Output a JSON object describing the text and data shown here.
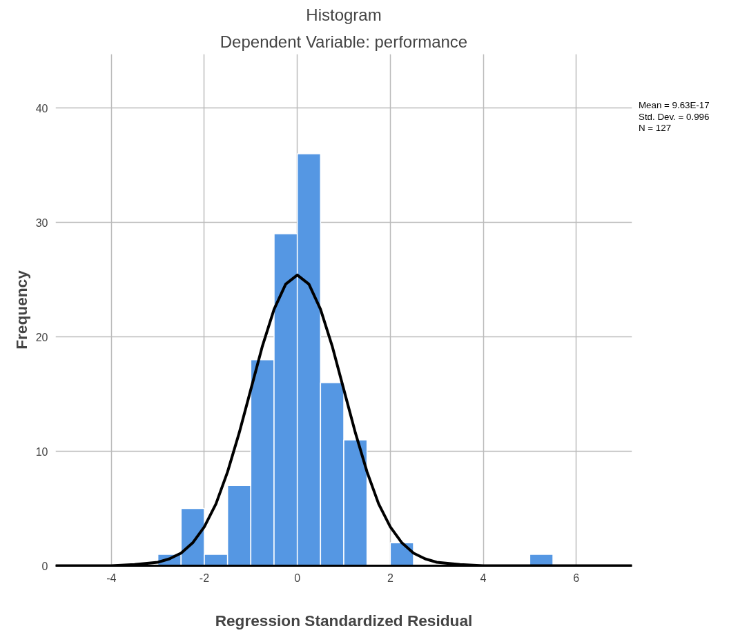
{
  "chart_data": {
    "type": "histogram",
    "title": "Histogram",
    "subtitle": "Dependent Variable: performance",
    "xlabel": "Regression Standardized Residual",
    "ylabel": "Frequency",
    "bins": [
      -3,
      -2.5,
      -2,
      -1.5,
      -1,
      -0.5,
      0,
      0.5,
      1,
      1.5,
      2,
      2.5,
      3,
      3.5,
      4,
      4.5,
      5,
      5.5
    ],
    "values": [
      1,
      5,
      1,
      7,
      18,
      29,
      36,
      16,
      11,
      0,
      2,
      0,
      0,
      0,
      0,
      0,
      1
    ],
    "color": "#5597e3",
    "series": [
      {
        "type": "line",
        "color": "#000000",
        "x": [
          -5.2,
          -4,
          -3.5,
          -3,
          -2.75,
          -2.5,
          -2.25,
          -2,
          -1.75,
          -1.5,
          -1.25,
          -1,
          -0.75,
          -0.5,
          -0.25,
          0,
          0.25,
          0.5,
          0.75,
          1,
          1.25,
          1.5,
          1.75,
          2,
          2.25,
          2.5,
          2.75,
          3,
          3.5,
          4,
          7.2
        ],
        "values": [
          0,
          0,
          0.1,
          0.3,
          0.6,
          1.1,
          2.0,
          3.4,
          5.4,
          8.2,
          11.6,
          15.4,
          19.2,
          22.4,
          24.6,
          25.4,
          24.6,
          22.4,
          19.2,
          15.4,
          11.6,
          8.2,
          5.4,
          3.4,
          2.0,
          1.1,
          0.6,
          0.3,
          0.1,
          0,
          0
        ]
      }
    ],
    "xlim": [
      -5.2,
      7.2
    ],
    "xticks": [
      -4,
      -2,
      0,
      2,
      4,
      6
    ],
    "ylim": [
      0,
      44.7
    ],
    "yticks": [
      0,
      10,
      20,
      30,
      40
    ],
    "grid": true,
    "annotations": [
      "Mean = 9.63E-17",
      "Std. Dev. = 0.996",
      "N = 127"
    ]
  }
}
